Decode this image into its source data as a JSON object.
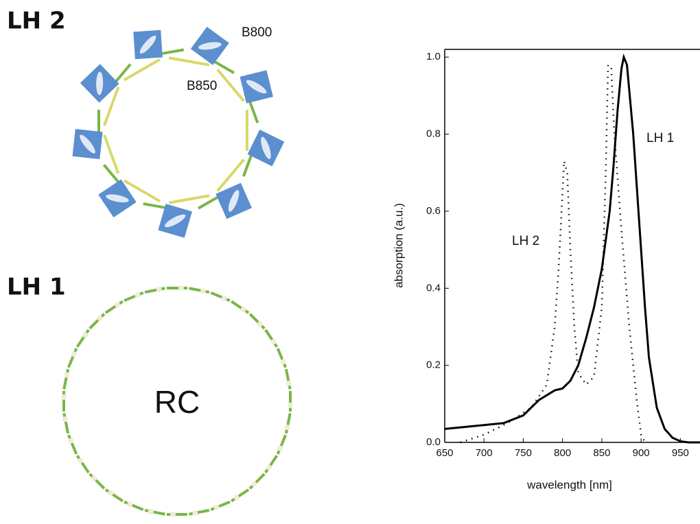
{
  "diagram": {
    "lh2_label": "LH 2",
    "b800": "B800",
    "b850": "B850",
    "lh1_label": "LH 1",
    "rc": "RC"
  },
  "chart_data": {
    "type": "line",
    "x_label": "wavelength [nm]",
    "y_label": "absorption (a.u.)",
    "xlim": [
      650,
      975
    ],
    "ylim": [
      0,
      1.02
    ],
    "xticks": [
      650,
      700,
      750,
      800,
      850,
      900,
      950
    ],
    "yticks": [
      {
        "value": 0,
        "label": "0.0"
      },
      0.2,
      0.4,
      0.6,
      0.8,
      {
        "value": 1,
        "label": "1.0"
      }
    ],
    "series": [
      {
        "name": "LH 1",
        "color": "#000000",
        "style": "solid",
        "x": [
          650,
          700,
          725,
          750,
          770,
          790,
          800,
          810,
          820,
          830,
          840,
          850,
          860,
          865,
          870,
          875,
          878,
          882,
          890,
          895,
          900,
          905,
          910,
          920,
          930,
          940,
          950,
          960,
          975
        ],
        "values": [
          0.035,
          0.045,
          0.05,
          0.07,
          0.11,
          0.135,
          0.14,
          0.16,
          0.2,
          0.27,
          0.35,
          0.45,
          0.6,
          0.72,
          0.86,
          0.97,
          1.0,
          0.98,
          0.8,
          0.65,
          0.5,
          0.35,
          0.22,
          0.09,
          0.035,
          0.012,
          0.003,
          0,
          0
        ]
      },
      {
        "name": "LH 2",
        "color": "#000000",
        "style": "dotted",
        "x": [
          670,
          700,
          730,
          760,
          780,
          790,
          795,
          800,
          802,
          806,
          810,
          815,
          820,
          830,
          840,
          850,
          855,
          858,
          862,
          866,
          875,
          885,
          895,
          900,
          905
        ],
        "values": [
          0.0,
          0.02,
          0.05,
          0.09,
          0.15,
          0.3,
          0.45,
          0.65,
          0.73,
          0.7,
          0.5,
          0.3,
          0.18,
          0.15,
          0.17,
          0.35,
          0.7,
          0.98,
          0.97,
          0.8,
          0.55,
          0.3,
          0.1,
          0.02,
          0.0
        ]
      }
    ]
  }
}
